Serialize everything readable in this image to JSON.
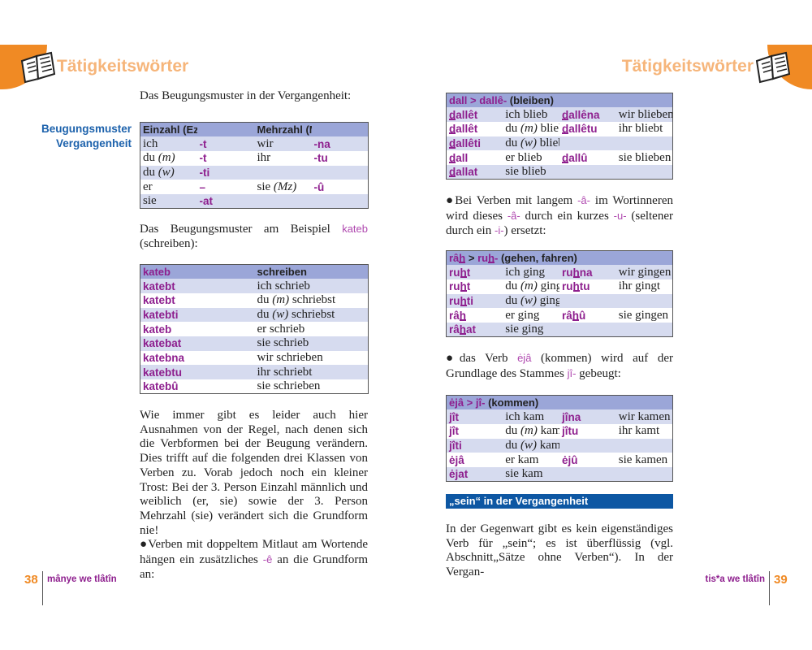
{
  "left": {
    "header": "Tätigkeitswörter",
    "intro": "Das Beugungsmuster in der Vergangenheit:",
    "side_label": [
      "Beugungsmuster",
      "Vergangenheit"
    ],
    "table1": {
      "header": [
        "Einzahl (Ez)",
        "",
        "Mehrzahl (Mz)",
        ""
      ],
      "rows": [
        [
          "ich",
          "-t",
          "wir",
          "-na"
        ],
        [
          "du (m)",
          "-t",
          "ihr",
          "-tu"
        ],
        [
          "du (w)",
          "-ti",
          "",
          ""
        ],
        [
          "er",
          "–",
          "sie (Mz)",
          "-û"
        ],
        [
          "sie",
          "-at",
          "",
          ""
        ]
      ]
    },
    "example_intro": [
      {
        "t": "Das Beugungsmuster am Beispiel "
      },
      {
        "t": "kateb",
        "c": "lpur"
      },
      {
        "t": " (schreiben):"
      }
    ],
    "table2": {
      "header": [
        "kateb",
        "schreiben"
      ],
      "rows": [
        [
          "katebt",
          "ich schrieb"
        ],
        [
          "katebt",
          "du (m) schriebst"
        ],
        [
          "katebti",
          "du (w) schriebst"
        ],
        [
          "kateb",
          "er schrieb"
        ],
        [
          "katebat",
          "sie schrieb"
        ],
        [
          "katebna",
          "wir schrieben"
        ],
        [
          "katebtu",
          "ihr schriebt"
        ],
        [
          "katebû",
          "sie schrieben"
        ]
      ]
    },
    "paragraph": [
      {
        "t": "Wie immer gibt es leider auch hier Ausnahmen von der Regel, nach denen sich die Verbformen bei der Beugung verändern. Dies trifft auf die folgenden drei Klassen von Verben zu. Vorab jedoch noch ein kleiner Trost: Bei der 3. Person Einzahl männlich und weiblich (er, sie) sowie der 3. Person Mehrzahl (sie) verändert sich die Grundform nie!"
      }
    ],
    "bullet": [
      {
        "t": "●Verben mit doppeltem Mitlaut am Wortende hängen ein zusätzliches "
      },
      {
        "t": "-ê",
        "c": "lpur"
      },
      {
        "t": " an die Grundform an:"
      }
    ],
    "footer": {
      "page": "38",
      "title": "mânye we tlâtîn"
    }
  },
  "right": {
    "header": "Tätigkeitswörter",
    "table_dall": {
      "header": [
        {
          "t": "dall > dallê-",
          "c": "pur"
        },
        {
          "t": " (bleiben)"
        }
      ],
      "rows": [
        [
          {
            "t": "dallêt",
            "u": [
              0,
              1
            ]
          },
          "ich blieb",
          {
            "t": "dallêna",
            "u": [
              0,
              1
            ]
          },
          "wir blieben"
        ],
        [
          {
            "t": "dallêt",
            "u": [
              0,
              1
            ]
          },
          "du (m) bliebst",
          {
            "t": "dallêtu",
            "u": [
              0,
              1
            ]
          },
          "ihr bliebt"
        ],
        [
          {
            "t": "dallêti",
            "u": [
              0,
              1
            ]
          },
          "du (w) bliebst",
          "",
          ""
        ],
        [
          {
            "t": "dall",
            "u": [
              0,
              1
            ]
          },
          "er blieb",
          {
            "t": "dallû",
            "u": [
              0,
              1
            ]
          },
          "sie blieben"
        ],
        [
          {
            "t": "dallat",
            "u": [
              0,
              1
            ]
          },
          "sie blieb",
          "",
          ""
        ]
      ]
    },
    "bullet1": [
      {
        "t": "●Bei Verben mit langem "
      },
      {
        "t": "-â-",
        "c": "lpur"
      },
      {
        "t": " im Wortinneren wird dieses "
      },
      {
        "t": "-â-",
        "c": "lpur"
      },
      {
        "t": " durch ein kurzes "
      },
      {
        "t": "-u-",
        "c": "lpur"
      },
      {
        "t": " (seltener durch ein "
      },
      {
        "t": "-i-",
        "c": "lpur"
      },
      {
        "t": ") ersetzt:"
      }
    ],
    "table_rah": {
      "header": [
        {
          "t": "râh",
          "c": "pur",
          "u": [
            2,
            3
          ]
        },
        {
          "t": " > "
        },
        {
          "t": "ruh-",
          "c": "pur",
          "u": [
            2,
            3
          ]
        },
        {
          "t": " (gehen, fahren)"
        }
      ],
      "rows": [
        [
          {
            "t": "ruht",
            "u": [
              2,
              3
            ]
          },
          "ich ging",
          {
            "t": "ruhna",
            "u": [
              2,
              3
            ]
          },
          "wir gingen"
        ],
        [
          {
            "t": "ruht",
            "u": [
              2,
              3
            ]
          },
          "du (m) gingst",
          {
            "t": "ruhtu",
            "u": [
              2,
              3
            ]
          },
          "ihr gingt"
        ],
        [
          {
            "t": "ruhti",
            "u": [
              2,
              3
            ]
          },
          "du (w) gingst",
          "",
          ""
        ],
        [
          {
            "t": "râh",
            "u": [
              2,
              3
            ]
          },
          "er ging",
          {
            "t": "râhû",
            "u": [
              2,
              3
            ]
          },
          "sie gingen"
        ],
        [
          {
            "t": "râhat",
            "u": [
              2,
              3
            ]
          },
          "sie ging",
          "",
          ""
        ]
      ]
    },
    "bullet2": [
      {
        "t": "●das Verb "
      },
      {
        "t": "ėjâ",
        "c": "lpur"
      },
      {
        "t": " (kommen) wird auf der Grundlage des Stammes "
      },
      {
        "t": "jî-",
        "c": "lpur"
      },
      {
        "t": " gebeugt:"
      }
    ],
    "table_eja": {
      "header": [
        {
          "t": "ėjâ > jî-",
          "c": "pur"
        },
        {
          "t": " (kommen)"
        }
      ],
      "rows": [
        [
          "jît",
          "ich kam",
          "jîna",
          "wir kamen"
        ],
        [
          "jît",
          "du (m) kamst",
          "jîtu",
          "ihr kamt"
        ],
        [
          "jîti",
          "du (w) kamst",
          "",
          ""
        ],
        [
          "ėjâ",
          "er kam",
          "ėjû",
          "sie kamen"
        ],
        [
          "ėjat",
          "sie kam",
          "",
          ""
        ]
      ]
    },
    "section_bar": "„sein“ in der Vergangenheit",
    "paragraph": [
      {
        "t": "In der Gegenwart gibt es kein eigenständiges Verb für „sein“; es ist überflüssig (vgl. Abschnitt„Sätze ohne Verben“). In der Vergan-"
      }
    ],
    "footer": {
      "page": "39",
      "title": "tis*a we tlâtîn"
    }
  },
  "colors": {
    "orange": "#f08a24",
    "purple": "#8e1f8e",
    "blue": "#0d57a3",
    "table_header": "#9ba6d8",
    "table_row": "#d6dbef"
  }
}
